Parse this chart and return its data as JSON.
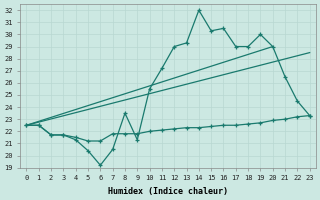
{
  "xlabel": "Humidex (Indice chaleur)",
  "xlim": [
    -0.5,
    23.5
  ],
  "ylim": [
    19,
    32.5
  ],
  "yticks": [
    19,
    20,
    21,
    22,
    23,
    24,
    25,
    26,
    27,
    28,
    29,
    30,
    31,
    32
  ],
  "xticks": [
    0,
    1,
    2,
    3,
    4,
    5,
    6,
    7,
    8,
    9,
    10,
    11,
    12,
    13,
    14,
    15,
    16,
    17,
    18,
    19,
    20,
    21,
    22,
    23
  ],
  "line_color": "#1a7a6e",
  "bg_color": "#cce8e2",
  "grid_color": "#b8d8d2",
  "jagged_x": [
    0,
    1,
    2,
    3,
    4,
    5,
    6,
    7,
    8,
    9,
    10,
    11,
    12,
    13,
    14,
    15,
    16,
    17,
    18,
    19,
    20,
    21,
    22,
    23
  ],
  "jagged_y": [
    22.5,
    22.5,
    21.7,
    21.7,
    21.3,
    20.4,
    19.2,
    20.5,
    23.5,
    21.3,
    25.5,
    27.2,
    29.0,
    29.3,
    32.0,
    30.3,
    30.5,
    29.0,
    29.0,
    30.0,
    29.0,
    26.5,
    24.5,
    23.3
  ],
  "flat_x": [
    0,
    1,
    2,
    3,
    4,
    5,
    6,
    7,
    8,
    9,
    10,
    11,
    12,
    13,
    14,
    15,
    16,
    17,
    18,
    19,
    20,
    21,
    22,
    23
  ],
  "flat_y": [
    22.5,
    22.5,
    21.7,
    21.7,
    21.5,
    21.2,
    21.2,
    21.8,
    21.8,
    21.8,
    22.0,
    22.1,
    22.2,
    22.3,
    22.3,
    22.4,
    22.5,
    22.5,
    22.6,
    22.7,
    22.9,
    23.0,
    23.2,
    23.3
  ],
  "trend1_x": [
    0,
    20
  ],
  "trend1_y": [
    22.5,
    29.0
  ],
  "trend2_x": [
    0,
    23
  ],
  "trend2_y": [
    22.5,
    28.5
  ]
}
